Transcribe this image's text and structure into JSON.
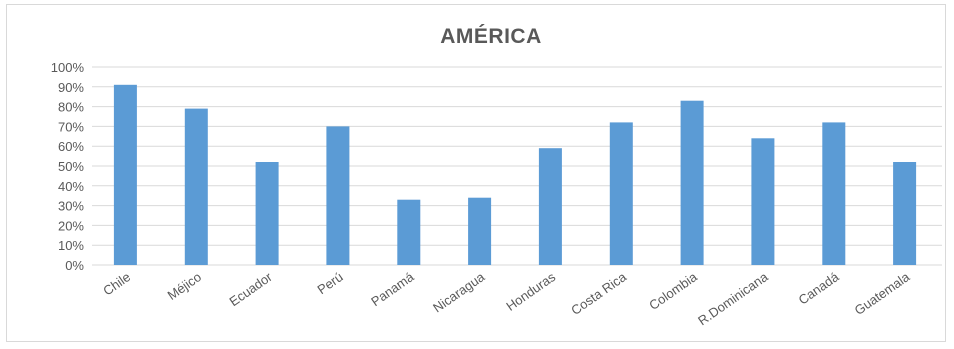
{
  "chart_data": {
    "type": "bar",
    "title": "AMÉRICA",
    "xlabel": "",
    "ylabel": "",
    "categories": [
      "Chile",
      "Méjico",
      "Ecuador",
      "Perú",
      "Panamá",
      "Nicaragua",
      "Honduras",
      "Costa Rica",
      "Colombia",
      "R.Dominicana",
      "Canadá",
      "Guatemala"
    ],
    "values": [
      91,
      79,
      52,
      70,
      33,
      34,
      59,
      72,
      83,
      64,
      72,
      52
    ],
    "ylim": [
      0,
      100
    ],
    "yticks": [
      "0%",
      "10%",
      "20%",
      "30%",
      "40%",
      "50%",
      "60%",
      "70%",
      "80%",
      "90%",
      "100%"
    ],
    "grid": true,
    "legend": "none",
    "bar_color": "#5b9bd5",
    "grid_color": "#d9d9d9"
  }
}
